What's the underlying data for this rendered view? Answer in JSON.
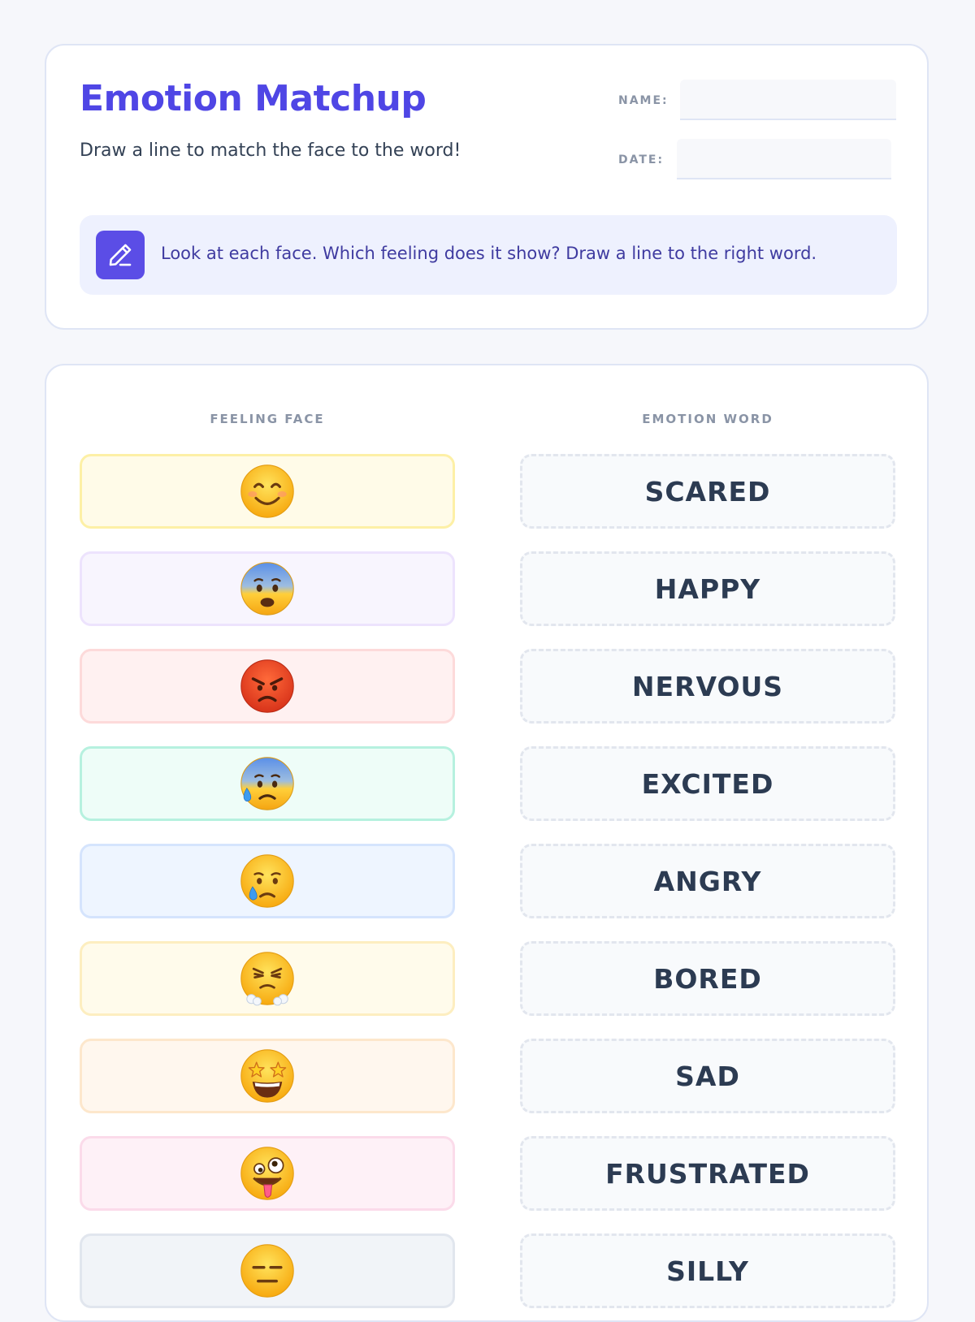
{
  "header": {
    "title": "Emotion Matchup",
    "subtitle": "Draw a line to match the face to the word!",
    "name_label": "NAME:",
    "name_value": "",
    "date_label": "DATE:",
    "date_value": "",
    "instruction": "Look at each face. Which feeling does it show? Draw a line to the right word.",
    "instruction_icon": "pencil-icon"
  },
  "match": {
    "faces_header": "FEELING FACE",
    "words_header": "EMOTION WORD",
    "faces": [
      {
        "face": "smiling-face",
        "bg": "#fffbe8",
        "border": "#fdf0a6"
      },
      {
        "face": "fearful-face",
        "bg": "#f8f5fe",
        "border": "#ede3fd"
      },
      {
        "face": "angry-face",
        "bg": "#fff1f1",
        "border": "#fddada"
      },
      {
        "face": "anxious-face-with-sweat",
        "bg": "#eefdf8",
        "border": "#b6f1df"
      },
      {
        "face": "crying-face",
        "bg": "#eef5ff",
        "border": "#d5e4fd"
      },
      {
        "face": "face-with-steam-from-nose",
        "bg": "#fffbeb",
        "border": "#fdeec0"
      },
      {
        "face": "star-struck-face",
        "bg": "#fff7ee",
        "border": "#fde7cc"
      },
      {
        "face": "zany-face",
        "bg": "#fef1f7",
        "border": "#fbdbea"
      },
      {
        "face": "expressionless-face",
        "bg": "#f1f4f8",
        "border": "#e1e6ee"
      }
    ],
    "words": [
      "SCARED",
      "HAPPY",
      "NERVOUS",
      "EXCITED",
      "ANGRY",
      "BORED",
      "SAD",
      "FRUSTRATED",
      "SILLY"
    ]
  },
  "colors": {
    "accent": "#4f46e5",
    "instruction_bg": "#eef1fe",
    "icon_bg": "#5b4de6"
  }
}
